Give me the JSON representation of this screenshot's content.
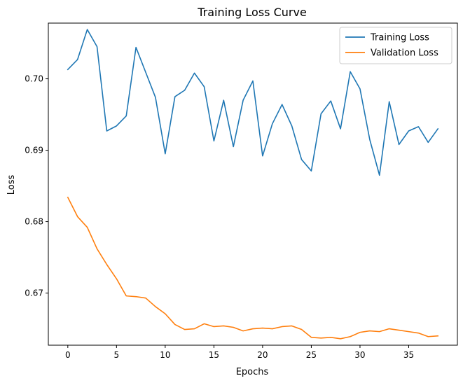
{
  "chart_data": {
    "type": "line",
    "title": "Training Loss Curve",
    "xlabel": "Epochs",
    "ylabel": "Loss",
    "xlim": [
      -2.0,
      40.0
    ],
    "ylim": [
      0.6627,
      0.7078
    ],
    "xticks": [
      0,
      5,
      10,
      15,
      20,
      25,
      30,
      35
    ],
    "yticks": [
      0.67,
      0.68,
      0.69,
      0.7
    ],
    "ytick_labels": [
      "0.67",
      "0.68",
      "0.69",
      "0.70"
    ],
    "xtick_labels": [
      "0",
      "5",
      "10",
      "15",
      "20",
      "25",
      "30",
      "35"
    ],
    "grid": false,
    "legend_position": "top-right",
    "x": [
      0,
      1,
      2,
      3,
      4,
      5,
      6,
      7,
      8,
      9,
      10,
      11,
      12,
      13,
      14,
      15,
      16,
      17,
      18,
      19,
      20,
      21,
      22,
      23,
      24,
      25,
      26,
      27,
      28,
      29,
      30,
      31,
      32,
      33,
      34,
      35,
      36,
      37,
      38
    ],
    "series": [
      {
        "name": "Training Loss",
        "color": "#1f77b4",
        "values": [
          0.7013,
          0.7027,
          0.7069,
          0.7045,
          0.6927,
          0.6934,
          0.6948,
          0.7044,
          0.7009,
          0.6974,
          0.6895,
          0.6975,
          0.6984,
          0.7008,
          0.6989,
          0.6913,
          0.697,
          0.6905,
          0.697,
          0.6997,
          0.6892,
          0.6937,
          0.6964,
          0.6934,
          0.6887,
          0.6871,
          0.6951,
          0.6969,
          0.693,
          0.701,
          0.6986,
          0.6915,
          0.6865,
          0.6968,
          0.6908,
          0.6927,
          0.6933,
          0.6911,
          0.693
        ]
      },
      {
        "name": "Validation Loss",
        "color": "#ff7f0e",
        "values": [
          0.6834,
          0.6807,
          0.6792,
          0.6762,
          0.674,
          0.672,
          0.6696,
          0.6695,
          0.6693,
          0.6681,
          0.6671,
          0.6656,
          0.6649,
          0.665,
          0.6657,
          0.6653,
          0.6654,
          0.6652,
          0.6647,
          0.665,
          0.6651,
          0.665,
          0.6653,
          0.6654,
          0.6649,
          0.6638,
          0.6637,
          0.6638,
          0.6636,
          0.6639,
          0.6645,
          0.6647,
          0.6646,
          0.665,
          0.6648,
          0.6646,
          0.6644,
          0.6639,
          0.664
        ]
      }
    ]
  }
}
